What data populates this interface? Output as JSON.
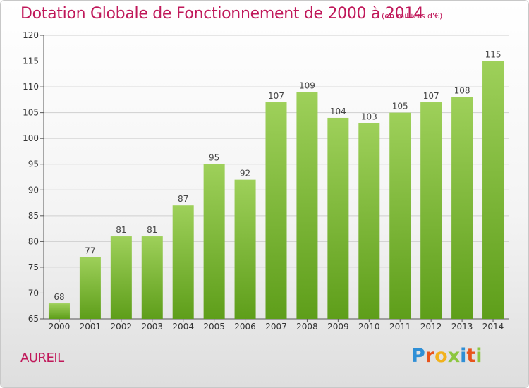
{
  "header": {
    "title": "Dotation Globale de Fonctionnement de 2000 à 2014",
    "subtitle": "(en milliers d'€)"
  },
  "footer": {
    "place": "AUREIL",
    "logo": [
      "P",
      "r",
      "o",
      "x",
      "i",
      "t",
      "i"
    ]
  },
  "colors": {
    "title": "#c0185a",
    "bar_top": "#9ed05a",
    "bar_bottom": "#5e9e1a",
    "grid": "#cfcfcf"
  },
  "chart_data": {
    "type": "bar",
    "categories": [
      "2000",
      "2001",
      "2002",
      "2003",
      "2004",
      "2005",
      "2006",
      "2007",
      "2008",
      "2009",
      "2010",
      "2011",
      "2012",
      "2013",
      "2014"
    ],
    "values": [
      68,
      77,
      81,
      81,
      87,
      95,
      92,
      107,
      109,
      104,
      103,
      105,
      107,
      108,
      115
    ],
    "title": "Dotation Globale de Fonctionnement de 2000 à 2014",
    "subtitle": "(en milliers d'€)",
    "ylim": [
      65,
      120
    ],
    "yticks": [
      65,
      70,
      75,
      80,
      85,
      90,
      95,
      100,
      105,
      110,
      115,
      120
    ],
    "grid": true,
    "legend": "none"
  }
}
